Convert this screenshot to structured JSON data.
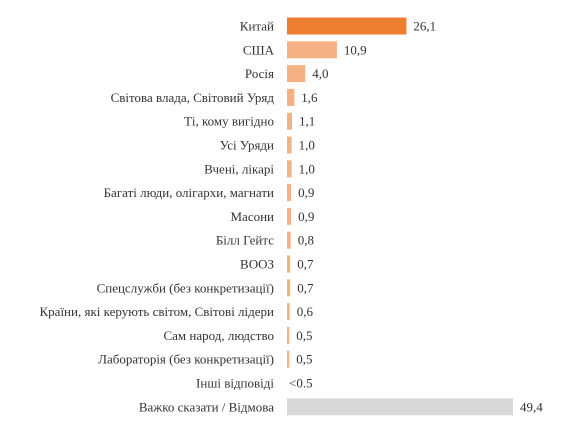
{
  "chart_data": {
    "type": "bar",
    "orientation": "horizontal",
    "title": "",
    "xlabel": "",
    "ylabel": "",
    "grid": false,
    "xlim": [
      0,
      49.4
    ],
    "categories": [
      "Китай",
      "США",
      "Росія",
      "Світова влада, Світовий Уряд",
      "Ті,  кому вигідно",
      "Усі Уряди",
      "Вчені, лікарі",
      "Багаті люди, олігархи,  магнати",
      "Масони",
      "Білл Гейтс",
      "ВООЗ",
      "Спецслужби (без конкретизації)",
      "Країни,  які керують світом, Світові лідери",
      "Сам народ, людство",
      "Лабораторія (без конкретизації)",
      "Інші відповіді",
      "Важко сказати / Відмова"
    ],
    "values": [
      26.1,
      10.9,
      4.0,
      1.6,
      1.1,
      1.0,
      1.0,
      0.9,
      0.9,
      0.8,
      0.7,
      0.7,
      0.6,
      0.5,
      0.5,
      0.4,
      49.4
    ],
    "value_labels": [
      "26,1",
      "10,9",
      "4,0",
      "1,6",
      "1,1",
      "1,0",
      "1,0",
      "0,9",
      "0,9",
      "0,8",
      "0,7",
      "0,7",
      "0,6",
      "0,5",
      "0,5",
      "<0.5",
      "49,4"
    ],
    "bar_colors": [
      "#ed7d31",
      "#f4b183",
      "#f4b183",
      "#f4b183",
      "#f4b183",
      "#f4b183",
      "#f4b183",
      "#f4b183",
      "#f4b183",
      "#f4b183",
      "#f4b183",
      "#f4b183",
      "#f4b183",
      "#f4b183",
      "#f4b183",
      "#f4b183",
      "#d9d9d9"
    ],
    "draw_bar": [
      true,
      true,
      true,
      true,
      true,
      true,
      true,
      true,
      true,
      true,
      true,
      true,
      true,
      true,
      true,
      false,
      true
    ]
  }
}
